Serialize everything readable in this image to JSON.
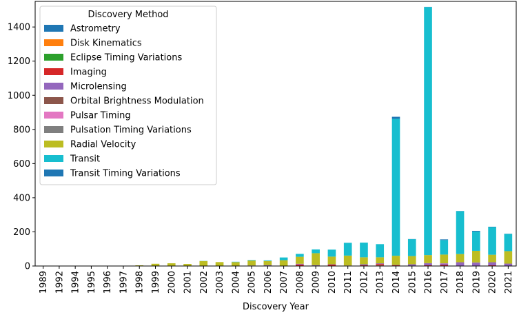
{
  "chart_data": {
    "type": "bar",
    "stacked": true,
    "xlabel": "Discovery Year",
    "ylabel": "",
    "ylim": [
      0,
      1550
    ],
    "yticks": [
      0,
      200,
      400,
      600,
      800,
      1000,
      1200,
      1400
    ],
    "grid": false,
    "legend_title": "Discovery Method",
    "legend_position": "top-left",
    "categories": [
      "1989",
      "1992",
      "1994",
      "1995",
      "1996",
      "1997",
      "1998",
      "1999",
      "2000",
      "2001",
      "2002",
      "2003",
      "2004",
      "2005",
      "2006",
      "2007",
      "2008",
      "2009",
      "2010",
      "2011",
      "2012",
      "2013",
      "2014",
      "2015",
      "2016",
      "2017",
      "2018",
      "2019",
      "2020",
      "2021"
    ],
    "series": [
      {
        "name": "Astrometry",
        "color": "#1f77b4",
        "values": [
          0,
          0,
          0,
          0,
          0,
          0,
          0,
          0,
          0,
          0,
          0,
          0,
          0,
          0,
          0,
          0,
          0,
          0,
          1,
          0,
          0,
          1,
          0,
          0,
          0,
          0,
          0,
          0,
          1,
          0
        ]
      },
      {
        "name": "Disk Kinematics",
        "color": "#ff7f0e",
        "values": [
          0,
          0,
          0,
          0,
          0,
          0,
          0,
          0,
          0,
          0,
          0,
          0,
          0,
          0,
          0,
          0,
          0,
          0,
          0,
          0,
          0,
          0,
          0,
          0,
          0,
          0,
          0,
          1,
          0,
          0
        ]
      },
      {
        "name": "Eclipse Timing Variations",
        "color": "#2ca02c",
        "values": [
          0,
          0,
          0,
          0,
          0,
          0,
          0,
          0,
          0,
          0,
          0,
          0,
          0,
          0,
          0,
          0,
          0,
          1,
          1,
          1,
          0,
          2,
          0,
          0,
          1,
          0,
          0,
          0,
          1,
          0
        ]
      },
      {
        "name": "Imaging",
        "color": "#d62728",
        "values": [
          0,
          0,
          0,
          0,
          0,
          0,
          0,
          0,
          0,
          0,
          0,
          0,
          1,
          1,
          1,
          0,
          9,
          1,
          6,
          0,
          4,
          8,
          4,
          2,
          3,
          6,
          2,
          1,
          2,
          2
        ]
      },
      {
        "name": "Microlensing",
        "color": "#9467bd",
        "values": [
          0,
          0,
          0,
          0,
          0,
          0,
          0,
          0,
          0,
          0,
          0,
          0,
          1,
          2,
          4,
          1,
          4,
          3,
          2,
          0,
          6,
          4,
          2,
          8,
          12,
          9,
          20,
          18,
          18,
          12
        ]
      },
      {
        "name": "Orbital Brightness Modulation",
        "color": "#8c564b",
        "values": [
          0,
          0,
          0,
          0,
          0,
          0,
          0,
          0,
          0,
          0,
          0,
          0,
          0,
          0,
          0,
          0,
          0,
          0,
          0,
          1,
          0,
          1,
          0,
          0,
          0,
          0,
          0,
          0,
          0,
          0
        ]
      },
      {
        "name": "Pulsar Timing",
        "color": "#e377c2",
        "values": [
          0,
          2,
          1,
          0,
          0,
          0,
          0,
          0,
          0,
          0,
          0,
          1,
          0,
          0,
          0,
          0,
          0,
          0,
          0,
          1,
          0,
          0,
          0,
          0,
          0,
          1,
          0,
          0,
          0,
          0
        ]
      },
      {
        "name": "Pulsation Timing Variations",
        "color": "#7f7f7f",
        "values": [
          0,
          0,
          0,
          0,
          0,
          0,
          0,
          0,
          0,
          0,
          0,
          0,
          0,
          0,
          0,
          1,
          0,
          0,
          0,
          0,
          0,
          0,
          0,
          0,
          1,
          0,
          0,
          1,
          0,
          0
        ]
      },
      {
        "name": "Radial Velocity",
        "color": "#bcbd22",
        "values": [
          1,
          0,
          0,
          1,
          1,
          1,
          4,
          13,
          16,
          12,
          29,
          22,
          21,
          29,
          24,
          32,
          41,
          70,
          45,
          58,
          41,
          35,
          54,
          48,
          47,
          51,
          48,
          68,
          44,
          73
        ]
      },
      {
        "name": "Transit",
        "color": "#17becf",
        "values": [
          0,
          0,
          0,
          0,
          0,
          0,
          0,
          0,
          0,
          0,
          1,
          0,
          2,
          3,
          4,
          16,
          17,
          22,
          41,
          75,
          86,
          77,
          802,
          99,
          1453,
          85,
          251,
          113,
          162,
          101
        ]
      },
      {
        "name": "Transit Timing Variations",
        "color": "#1f77b4",
        "values": [
          0,
          0,
          0,
          0,
          0,
          0,
          0,
          0,
          0,
          0,
          0,
          0,
          0,
          0,
          0,
          0,
          0,
          0,
          0,
          0,
          0,
          0,
          12,
          1,
          1,
          4,
          1,
          4,
          2,
          1
        ]
      }
    ]
  }
}
